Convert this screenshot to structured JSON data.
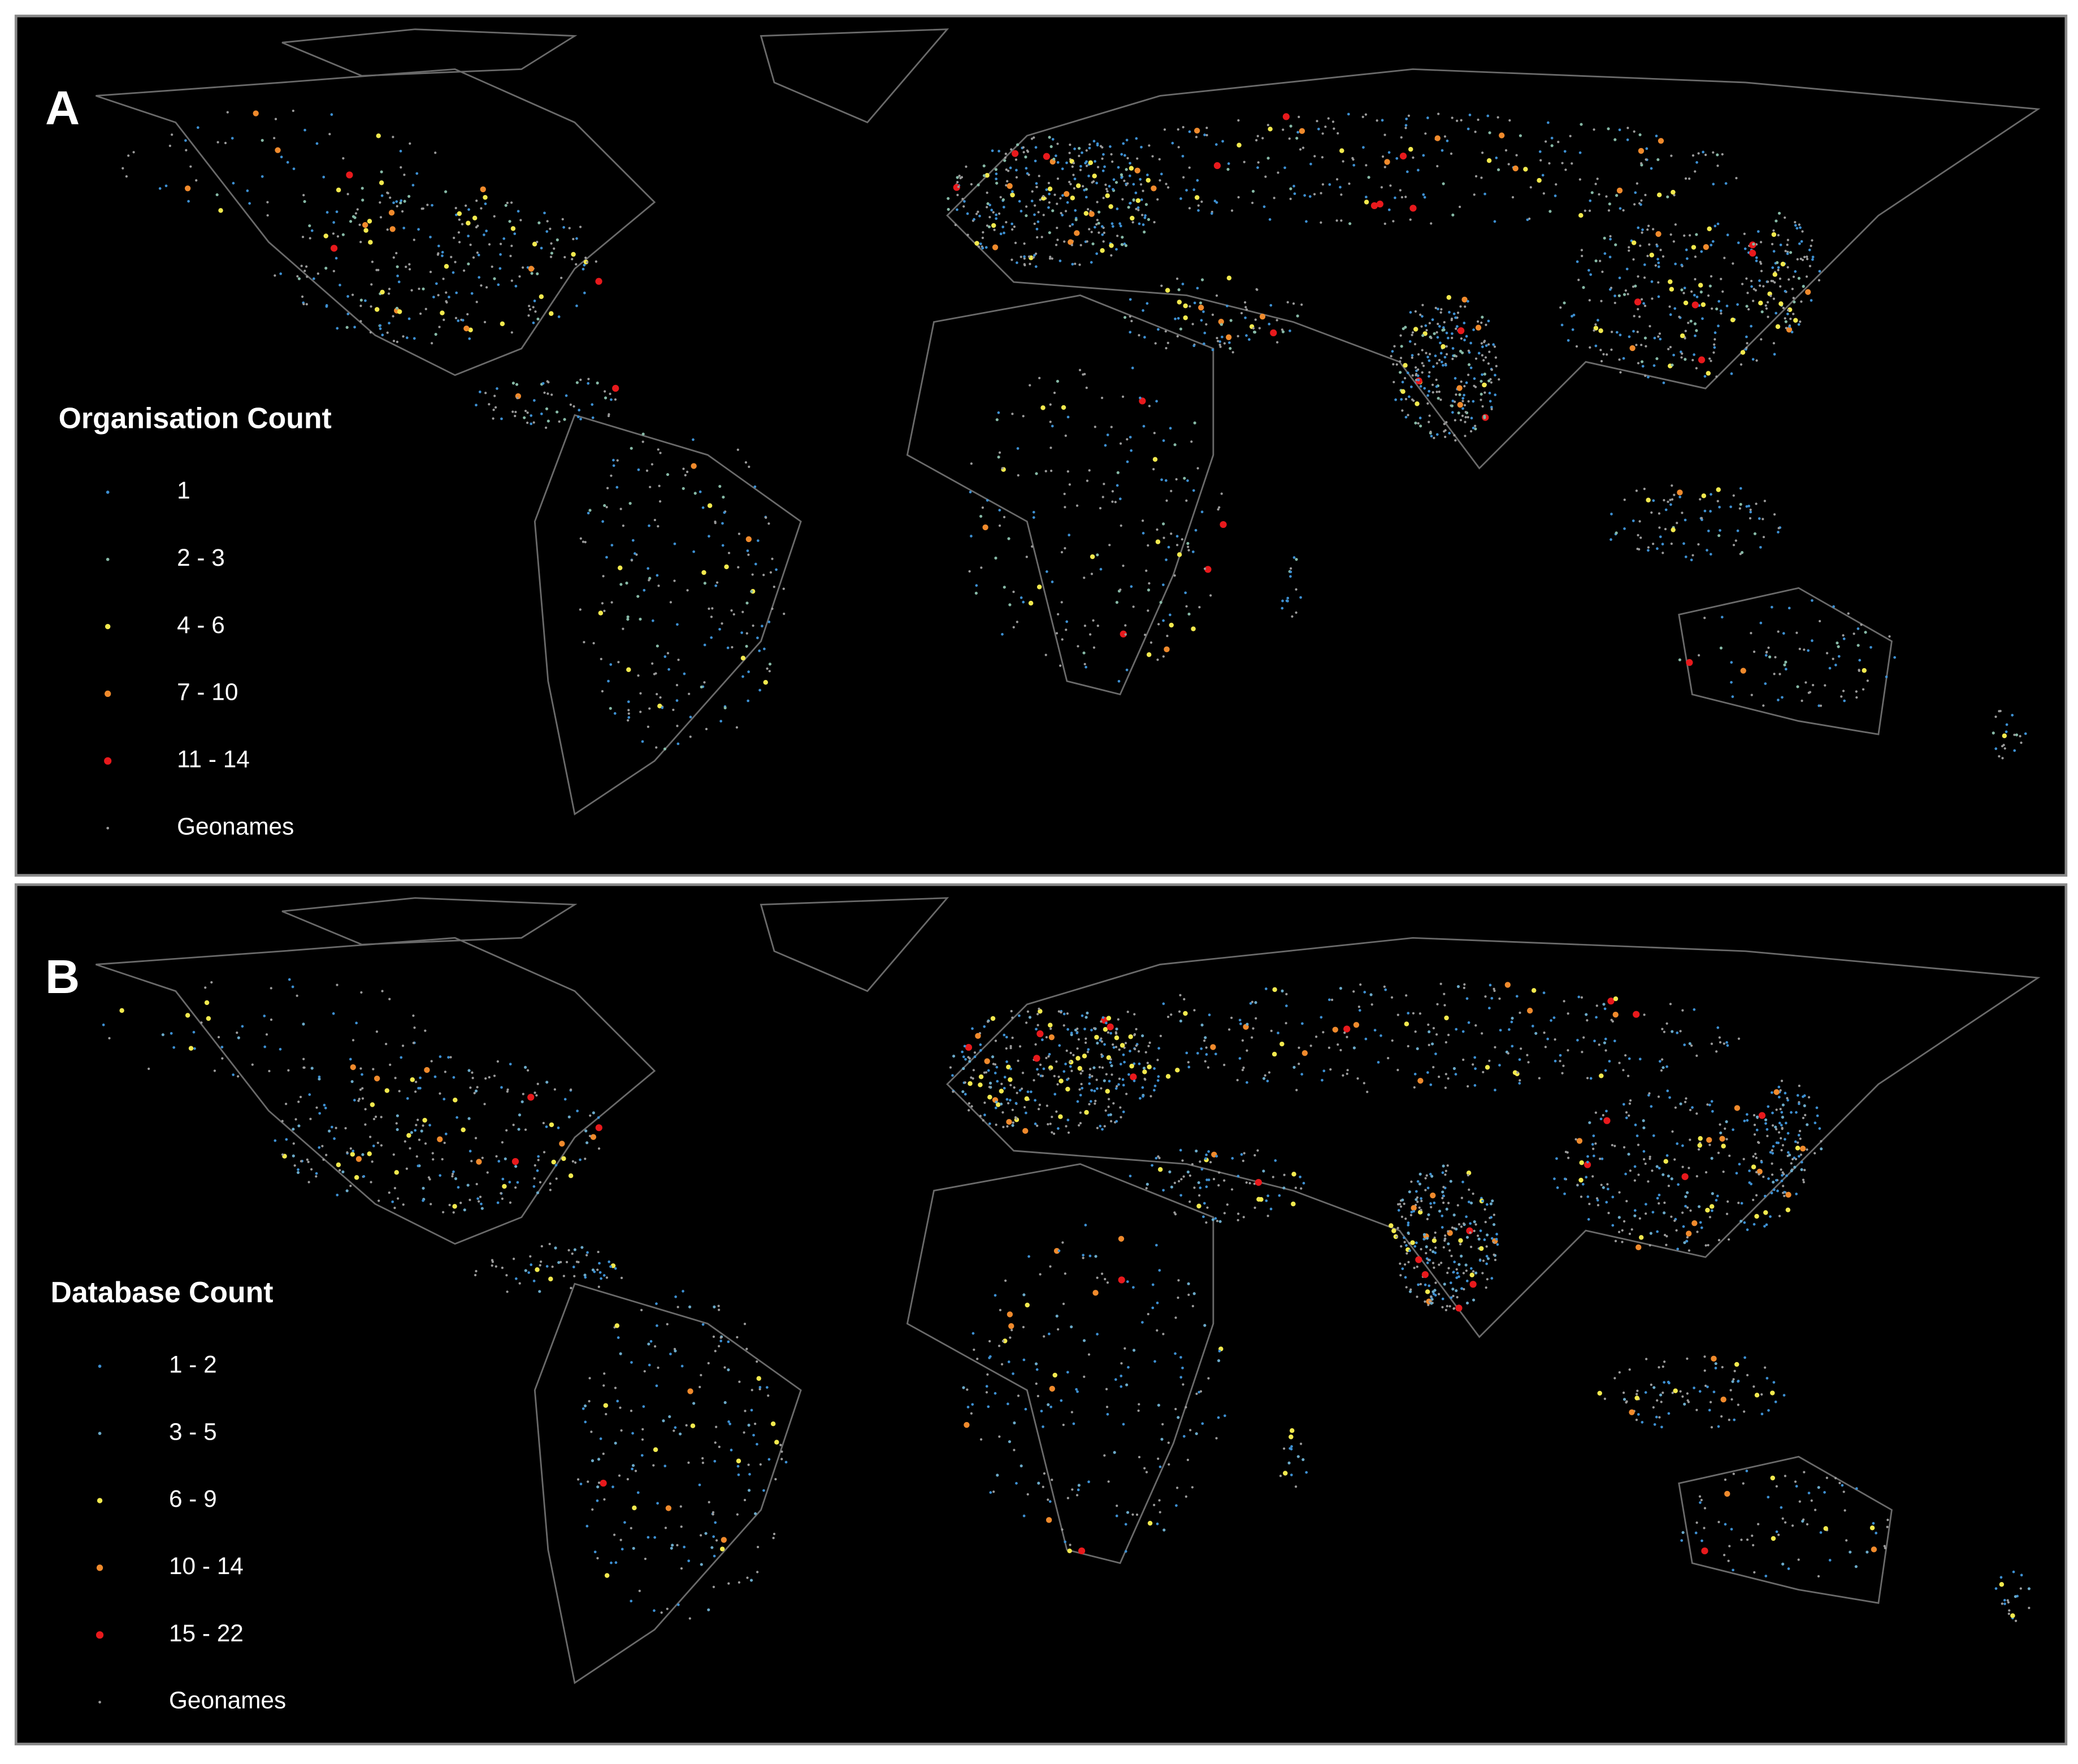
{
  "panels": [
    {
      "label": "A",
      "legend": {
        "title": "Organisation Count",
        "items": [
          {
            "label": "1",
            "color": "#3d8fd1"
          },
          {
            "label": "2 - 3",
            "color": "#86b9a6"
          },
          {
            "label": "4 - 6",
            "color": "#f2e94e"
          },
          {
            "label": "7 - 10",
            "color": "#f08a2c"
          },
          {
            "label": "11 - 14",
            "color": "#e8191c"
          },
          {
            "label": "Geonames",
            "color": "#9a9a9a"
          }
        ]
      }
    },
    {
      "label": "B",
      "legend": {
        "title": "Database Count",
        "items": [
          {
            "label": "1 - 2",
            "color": "#3d8fd1"
          },
          {
            "label": "3 - 5",
            "color": "#6aa9c8"
          },
          {
            "label": "6 - 9",
            "color": "#f2e94e"
          },
          {
            "label": "10 - 14",
            "color": "#f08a2c"
          },
          {
            "label": "15 - 22",
            "color": "#e8191c"
          },
          {
            "label": "Geonames",
            "color": "#9a9a9a"
          }
        ]
      }
    }
  ]
}
